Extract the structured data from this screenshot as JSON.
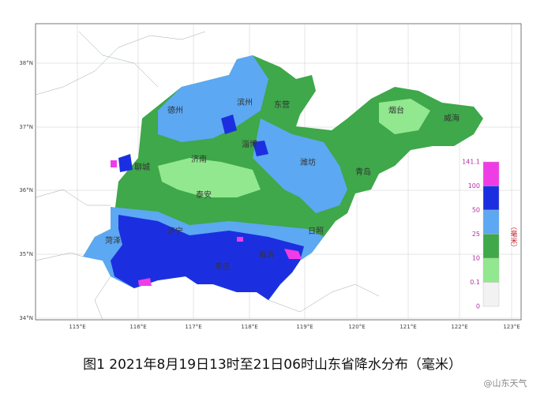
{
  "map": {
    "lat_labels": [
      "38°N",
      "37°N",
      "36°N",
      "35°N",
      "34°N"
    ],
    "lon_labels": [
      "115°E",
      "116°E",
      "117°E",
      "118°E",
      "119°E",
      "120°E",
      "121°E",
      "122°E",
      "123°E"
    ],
    "cities": [
      "德州",
      "滨州",
      "东营",
      "烟台",
      "威海",
      "聊城",
      "济南",
      "淄博",
      "潍坊",
      "青岛",
      "泰安",
      "日照",
      "菏泽",
      "济宁",
      "临沂",
      "枣庄"
    ],
    "legend": {
      "labels": [
        "141.1",
        "100",
        "50",
        "25",
        "10",
        "0.1",
        "0"
      ],
      "unit": "（毫米）",
      "colors": [
        "#f03ce6",
        "#1c2fe0",
        "#5ca8f2",
        "#3ea84a",
        "#92e88e",
        "#f2f2f2"
      ]
    },
    "caption": "图1 2021年8月19日13时至21日06时山东省降水分布（毫米）",
    "watermark": "@山东天气"
  }
}
